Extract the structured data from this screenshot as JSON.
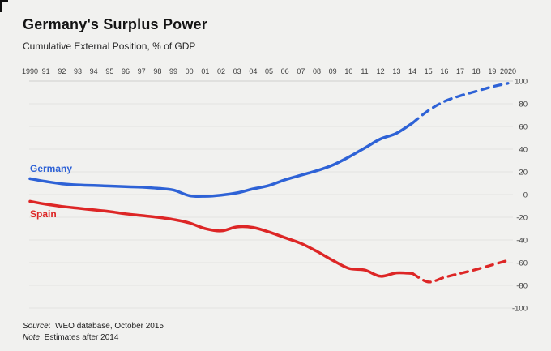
{
  "header": {
    "title": "Germany's Surplus Power",
    "subtitle": "Cumulative External Position, % of GDP"
  },
  "footer": {
    "source_label": "Source",
    "source_rest": ":  WEO database, October 2015",
    "note_label": "Note",
    "note_rest": ": Estimates after 2014"
  },
  "colors": {
    "background": "#f1f1ef",
    "gridline": "#e4e4e1",
    "axis_line": "#cfcfcc",
    "tick_text": "#3b3b3b",
    "germany_blue": "#2e62d6",
    "spain_red": "#dd2626"
  },
  "chart_data": {
    "type": "line",
    "title": "Germany's Surplus Power",
    "subtitle": "Cumulative External Position, % of GDP",
    "x": [
      1990,
      1991,
      1992,
      1993,
      1994,
      1995,
      1996,
      1997,
      1998,
      1999,
      2000,
      2001,
      2002,
      2003,
      2004,
      2005,
      2006,
      2007,
      2008,
      2009,
      2010,
      2011,
      2012,
      2013,
      2014,
      2015,
      2016,
      2017,
      2018,
      2019,
      2020
    ],
    "x_tick_labels": [
      "1990",
      "91",
      "92",
      "93",
      "94",
      "95",
      "96",
      "97",
      "98",
      "99",
      "00",
      "01",
      "02",
      "03",
      "04",
      "05",
      "06",
      "07",
      "08",
      "09",
      "10",
      "11",
      "12",
      "13",
      "14",
      "15",
      "16",
      "17",
      "18",
      "19",
      "2020"
    ],
    "y_ticks": [
      100,
      80,
      60,
      40,
      20,
      0,
      -20,
      -40,
      -60,
      -80,
      -100
    ],
    "ylim": [
      -100,
      100
    ],
    "grid": true,
    "x_axis_position": "top",
    "y_axis_position": "right",
    "estimates_dashed_after": 2014,
    "series": [
      {
        "name": "Germany",
        "color": "#2e62d6",
        "values": [
          14,
          11.5,
          9.5,
          8.5,
          8,
          7.5,
          7,
          6.5,
          5.5,
          4,
          -1,
          -1.5,
          -0.5,
          1.5,
          5,
          8,
          13,
          17,
          21,
          26,
          33,
          41,
          49,
          54,
          63,
          74,
          82,
          87,
          91,
          95,
          98
        ]
      },
      {
        "name": "Spain",
        "color": "#dd2626",
        "values": [
          -6,
          -8.5,
          -10.5,
          -12,
          -13.5,
          -15,
          -17,
          -18.5,
          -20,
          -22,
          -25,
          -30,
          -32,
          -28.5,
          -29,
          -33,
          -38,
          -43,
          -50,
          -58,
          -65,
          -66.5,
          -72,
          -69,
          -69.5,
          -77,
          -73,
          -69.5,
          -66,
          -62,
          -58
        ]
      }
    ],
    "legend_labels": [
      "Germany",
      "Spain"
    ]
  }
}
